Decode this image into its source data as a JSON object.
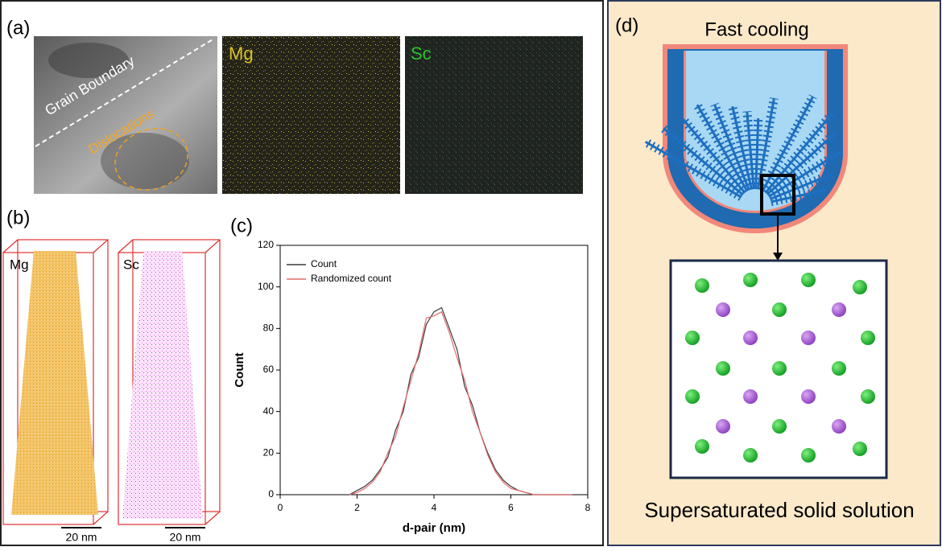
{
  "panels": {
    "a": {
      "label": "(a)",
      "grain_boundary": "Grain Boundary",
      "dislocations": "Dislocations",
      "mg": "Mg",
      "sc": "Sc"
    },
    "b": {
      "label": "(b)",
      "mg": "Mg",
      "sc": "Sc",
      "scale_mg": "20 nm",
      "scale_sc": "20 nm"
    },
    "c": {
      "label": "(c)"
    },
    "d": {
      "label": "(d)",
      "title": "Fast cooling",
      "caption": "Supersaturated solid solution"
    }
  },
  "chart_data": {
    "type": "line",
    "xlabel": "d-pair (nm)",
    "ylabel": "Count",
    "x": [
      1.8,
      2.0,
      2.2,
      2.4,
      2.6,
      2.8,
      3.0,
      3.2,
      3.4,
      3.6,
      3.8,
      4.0,
      4.2,
      4.4,
      4.6,
      4.8,
      5.0,
      5.2,
      5.4,
      5.6,
      5.8,
      6.0,
      6.2,
      6.4,
      6.6,
      6.8,
      7.0,
      7.2,
      7.4,
      7.6
    ],
    "series": [
      {
        "name": "Count",
        "color": "#3a3a3a",
        "values": [
          0,
          2,
          4,
          7,
          12,
          18,
          31,
          40,
          58,
          66,
          82,
          88,
          90,
          80,
          70,
          52,
          43,
          30,
          20,
          12,
          7,
          4,
          2,
          1,
          0,
          0,
          0,
          0,
          0,
          0
        ]
      },
      {
        "name": "Randomized count",
        "color": "#e36a6a",
        "values": [
          0,
          1,
          3,
          6,
          11,
          20,
          28,
          42,
          55,
          68,
          85,
          86,
          88,
          78,
          66,
          55,
          40,
          30,
          19,
          11,
          6,
          3,
          2,
          1,
          0,
          0,
          0,
          0,
          0,
          0
        ]
      }
    ],
    "xlim": [
      0,
      8
    ],
    "ylim": [
      0,
      120
    ],
    "xticks": [
      0,
      2,
      4,
      6,
      8
    ],
    "yticks": [
      0,
      20,
      40,
      60,
      80,
      100,
      120
    ],
    "legend": "upper left"
  }
}
